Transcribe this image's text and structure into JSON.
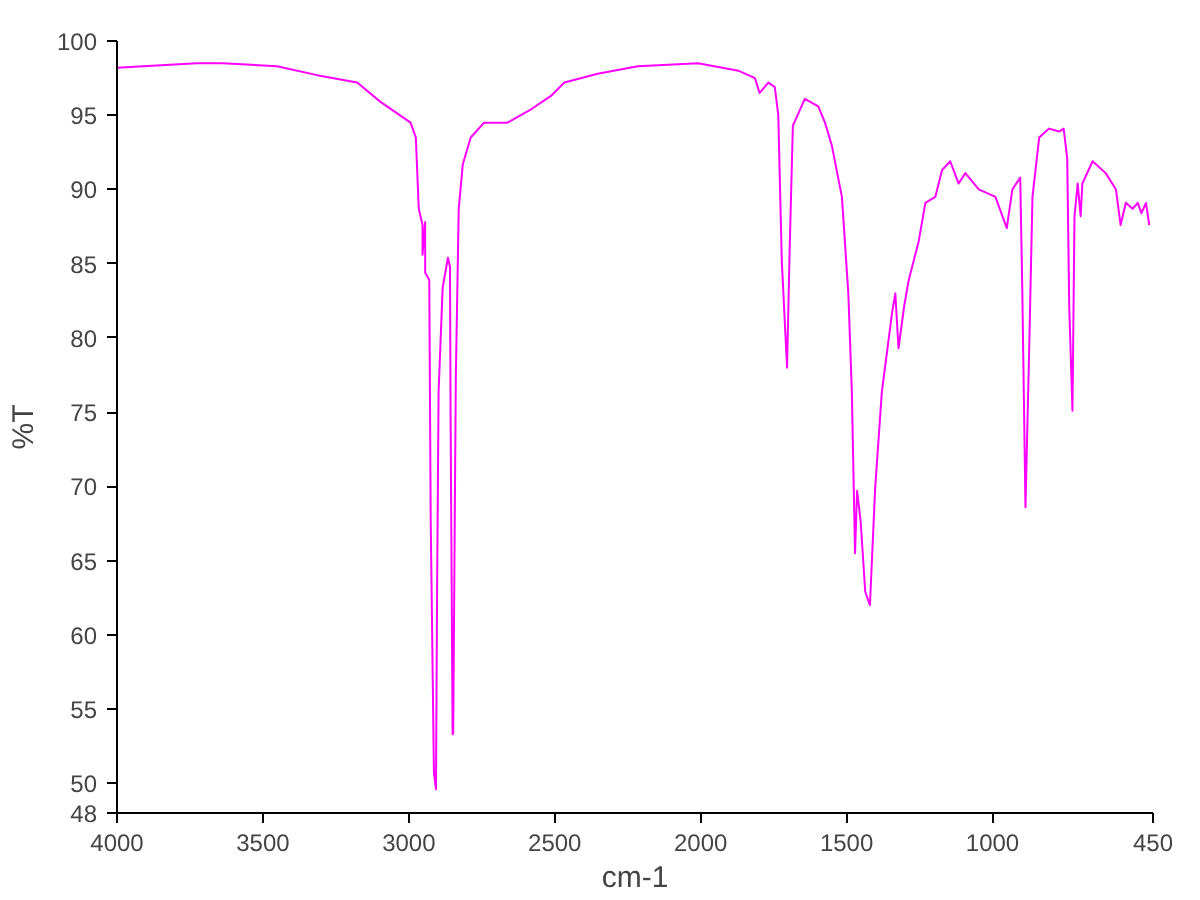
{
  "chart_data": {
    "type": "line",
    "xlabel": "cm-1",
    "ylabel": "%T",
    "xlim": [
      4000,
      450
    ],
    "xticks": [
      4000,
      3500,
      3000,
      2500,
      2000,
      1500,
      1000,
      450
    ],
    "ylim": [
      48,
      100
    ],
    "yticks": [
      48,
      50,
      55,
      60,
      65,
      70,
      75,
      80,
      85,
      90,
      95,
      100
    ],
    "grid": false,
    "line_style": "solid",
    "series": [
      {
        "color": "#ff00ff",
        "x": [
          4000,
          3727,
          3637,
          3452,
          3314,
          3177,
          3097,
          2994,
          2976,
          2966,
          2953,
          2953,
          2944,
          2944,
          2930,
          2925,
          2914,
          2907,
          2903,
          2898,
          2884,
          2866,
          2859,
          2857,
          2850,
          2848,
          2839,
          2829,
          2815,
          2788,
          2742,
          2662,
          2581,
          2513,
          2467,
          2353,
          2215,
          2009,
          1871,
          1814,
          1798,
          1768,
          1746,
          1734,
          1722,
          1704,
          1695,
          1684,
          1643,
          1597,
          1574,
          1551,
          1516,
          1494,
          1482,
          1471,
          1464,
          1452,
          1436,
          1420,
          1402,
          1379,
          1344,
          1333,
          1322,
          1303,
          1287,
          1253,
          1230,
          1196,
          1173,
          1145,
          1116,
          1093,
          1047,
          990,
          951,
          932,
          905,
          898,
          887,
          875,
          863,
          840,
          806,
          772,
          756,
          744,
          737,
          726,
          719,
          708,
          698,
          692,
          657,
          612,
          577,
          561,
          543,
          520,
          502,
          490,
          474,
          463
        ],
        "values": [
          98.2,
          98.5,
          98.5,
          98.3,
          97.7,
          97.2,
          95.9,
          94.5,
          93.5,
          88.7,
          87.6,
          85.6,
          87.8,
          84.4,
          83.9,
          67.7,
          50.7,
          49.6,
          63.4,
          76.4,
          83.4,
          85.4,
          84.8,
          75.1,
          53.3,
          53.4,
          77.3,
          88.7,
          91.7,
          93.5,
          94.5,
          94.5,
          95.4,
          96.3,
          97.2,
          97.8,
          98.3,
          98.5,
          98.0,
          97.5,
          96.5,
          97.2,
          96.9,
          95.0,
          85.2,
          78.0,
          86.0,
          94.3,
          96.1,
          95.6,
          94.5,
          93.0,
          89.5,
          83.0,
          76.4,
          65.5,
          69.7,
          67.7,
          62.9,
          62.0,
          69.9,
          76.4,
          81.7,
          83.0,
          79.3,
          82.1,
          83.9,
          86.5,
          89.1,
          89.5,
          91.3,
          91.9,
          90.4,
          91.1,
          90.0,
          89.5,
          87.4,
          90.0,
          90.8,
          83.4,
          68.6,
          78.6,
          89.5,
          93.5,
          94.1,
          93.9,
          94.1,
          92.1,
          82.1,
          75.1,
          88.2,
          90.4,
          88.2,
          90.4,
          91.9,
          91.1,
          90.0,
          87.6,
          89.1,
          88.7,
          89.1,
          88.4,
          89.1,
          87.6
        ]
      }
    ]
  }
}
